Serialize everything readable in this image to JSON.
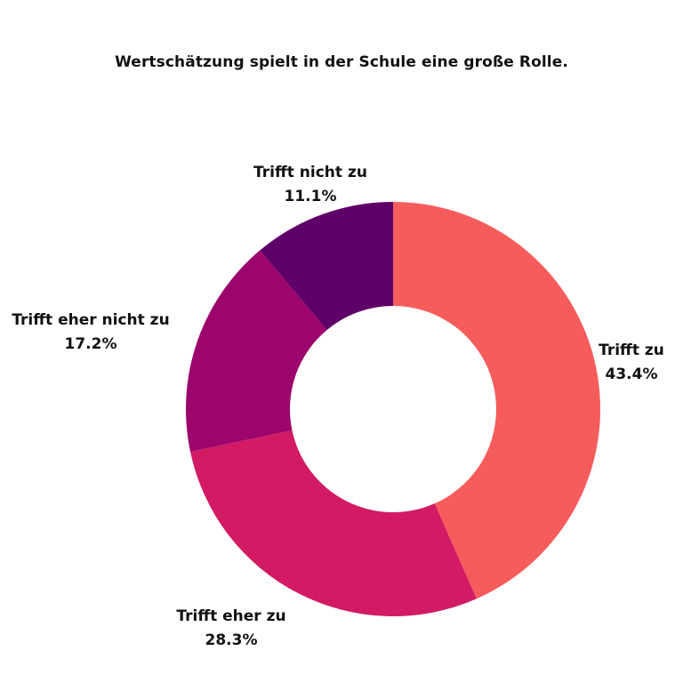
{
  "chart_data": {
    "type": "pie",
    "donut": true,
    "title": "Wertschätzung spielt in der Schule eine große Rolle.",
    "unit": "%",
    "slices": [
      {
        "label": "Trifft zu",
        "value": 43.4,
        "display": "43.4%",
        "color": "#f65c5c"
      },
      {
        "label": "Trifft eher zu",
        "value": 28.3,
        "display": "28.3%",
        "color": "#d21a65"
      },
      {
        "label": "Trifft eher nicht zu",
        "value": 17.2,
        "display": "17.2%",
        "color": "#9c056c"
      },
      {
        "label": "Trifft nicht zu",
        "value": 11.1,
        "display": "11.1%",
        "color": "#5f0068"
      }
    ],
    "start_position": "top",
    "direction": "clockwise",
    "legend": "none"
  }
}
